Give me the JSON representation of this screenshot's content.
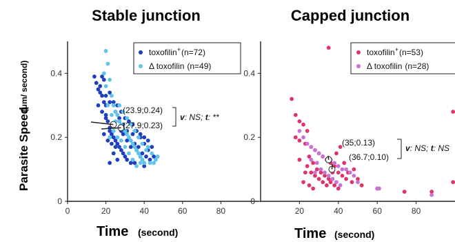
{
  "chart_data": [
    {
      "type": "scatter",
      "title": "Stable junction",
      "xlabel": "Time",
      "xlabel_unit": "(second)",
      "ylabel": "Parasite Speed",
      "ylabel_unit": "(μm/ second)",
      "xlim": [
        0,
        100
      ],
      "ylim": [
        0,
        0.5
      ],
      "xticks": [
        "0",
        "20",
        "40",
        "60",
        "80"
      ],
      "yticks": [
        "0",
        "0.2",
        "0.4"
      ],
      "grid": false,
      "legend_position": "top-right",
      "series": [
        {
          "name": "toxofilin",
          "superscript": "+",
          "count": "(n=72)",
          "color": "#1f3fbf",
          "points": [
            [
              14,
              0.39
            ],
            [
              15,
              0.37
            ],
            [
              16,
              0.35
            ],
            [
              17,
              0.34
            ],
            [
              18,
              0.33
            ],
            [
              19,
              0.31
            ],
            [
              20,
              0.3
            ],
            [
              20,
              0.27
            ],
            [
              21,
              0.25
            ],
            [
              22,
              0.23
            ],
            [
              22,
              0.22
            ],
            [
              23,
              0.21
            ],
            [
              24,
              0.2
            ],
            [
              25,
              0.19
            ],
            [
              26,
              0.18
            ],
            [
              27,
              0.17
            ],
            [
              28,
              0.16
            ],
            [
              29,
              0.15
            ],
            [
              30,
              0.14
            ],
            [
              31,
              0.13
            ],
            [
              33,
              0.12
            ],
            [
              35,
              0.12
            ],
            [
              36,
              0.16
            ],
            [
              38,
              0.2
            ],
            [
              40,
              0.18
            ],
            [
              42,
              0.16
            ],
            [
              18,
              0.39
            ],
            [
              19,
              0.38
            ],
            [
              17,
              0.36
            ],
            [
              22,
              0.34
            ],
            [
              24,
              0.31
            ],
            [
              26,
              0.3
            ],
            [
              28,
              0.28
            ],
            [
              30,
              0.26
            ],
            [
              32,
              0.25
            ],
            [
              34,
              0.24
            ],
            [
              36,
              0.22
            ],
            [
              38,
              0.21
            ],
            [
              40,
              0.2
            ],
            [
              42,
              0.19
            ],
            [
              44,
              0.17
            ],
            [
              18,
              0.28
            ],
            [
              20,
              0.26
            ],
            [
              22,
              0.31
            ],
            [
              25,
              0.28
            ],
            [
              27,
              0.26
            ],
            [
              29,
              0.24
            ],
            [
              31,
              0.22
            ],
            [
              33,
              0.19
            ],
            [
              35,
              0.18
            ],
            [
              37,
              0.17
            ],
            [
              39,
              0.15
            ],
            [
              41,
              0.14
            ],
            [
              43,
              0.13
            ],
            [
              19,
              0.21
            ],
            [
              21,
              0.19
            ],
            [
              23,
              0.18
            ],
            [
              25,
              0.17
            ],
            [
              27,
              0.25
            ],
            [
              29,
              0.21
            ],
            [
              31,
              0.19
            ],
            [
              33,
              0.17
            ],
            [
              22,
              0.12
            ],
            [
              24,
              0.15
            ],
            [
              26,
              0.13
            ],
            [
              28,
              0.22
            ],
            [
              20,
              0.33
            ],
            [
              16,
              0.3
            ],
            [
              34,
              0.21
            ],
            [
              38,
              0.14
            ],
            [
              40,
              0.11
            ],
            [
              45,
              0.14
            ]
          ]
        },
        {
          "name": "Δ toxofilin",
          "count": "(n=49)",
          "color": "#5fc3ec",
          "points": [
            [
              20,
              0.47
            ],
            [
              21,
              0.43
            ],
            [
              19,
              0.4
            ],
            [
              22,
              0.38
            ],
            [
              20,
              0.36
            ],
            [
              23,
              0.33
            ],
            [
              24,
              0.3
            ],
            [
              25,
              0.28
            ],
            [
              26,
              0.27
            ],
            [
              27,
              0.25
            ],
            [
              28,
              0.24
            ],
            [
              29,
              0.23
            ],
            [
              30,
              0.22
            ],
            [
              31,
              0.21
            ],
            [
              32,
              0.2
            ],
            [
              33,
              0.19
            ],
            [
              34,
              0.18
            ],
            [
              35,
              0.17
            ],
            [
              36,
              0.16
            ],
            [
              37,
              0.15
            ],
            [
              38,
              0.14
            ],
            [
              39,
              0.13
            ],
            [
              40,
              0.12
            ],
            [
              42,
              0.17
            ],
            [
              44,
              0.15
            ],
            [
              46,
              0.13
            ],
            [
              47,
              0.14
            ],
            [
              21,
              0.3
            ],
            [
              23,
              0.27
            ],
            [
              25,
              0.25
            ],
            [
              27,
              0.3
            ],
            [
              29,
              0.28
            ],
            [
              31,
              0.26
            ],
            [
              33,
              0.24
            ],
            [
              35,
              0.22
            ],
            [
              37,
              0.2
            ],
            [
              39,
              0.18
            ],
            [
              41,
              0.16
            ],
            [
              43,
              0.12
            ],
            [
              26,
              0.2
            ],
            [
              28,
              0.19
            ],
            [
              30,
              0.17
            ],
            [
              32,
              0.15
            ],
            [
              34,
              0.13
            ],
            [
              24,
              0.22
            ],
            [
              22,
              0.2
            ],
            [
              36,
              0.11
            ],
            [
              38,
              0.12
            ],
            [
              45,
              0.12
            ]
          ]
        }
      ],
      "annotations": [
        {
          "label": "(23.9;0.24)",
          "x": 23.9,
          "y": 0.24
        },
        {
          "label": "(27.9;0.23)",
          "x": 27.9,
          "y": 0.23
        }
      ],
      "stat_text": {
        "v": "v",
        "v_result": ": NS; ",
        "t": "t",
        "t_result": ": **"
      }
    },
    {
      "type": "scatter",
      "title": "Capped junction",
      "xlabel": "Time",
      "xlabel_unit": "(second)",
      "xlim": [
        0,
        100
      ],
      "ylim": [
        0,
        0.5
      ],
      "xticks": [
        "20",
        "40",
        "60",
        "80"
      ],
      "yticks": [
        "0",
        "0.2",
        "0.4"
      ],
      "grid": false,
      "legend_position": "top-right",
      "series": [
        {
          "name": "toxofilin",
          "superscript": "+",
          "count": "(n=53)",
          "color": "#e03368",
          "points": [
            [
              35,
              0.48
            ],
            [
              16,
              0.32
            ],
            [
              99,
              0.28
            ],
            [
              18,
              0.27
            ],
            [
              20,
              0.25
            ],
            [
              22,
              0.24
            ],
            [
              24,
              0.22
            ],
            [
              18,
              0.2
            ],
            [
              20,
              0.19
            ],
            [
              23,
              0.18
            ],
            [
              26,
              0.17
            ],
            [
              28,
              0.16
            ],
            [
              30,
              0.15
            ],
            [
              25,
              0.14
            ],
            [
              32,
              0.14
            ],
            [
              34,
              0.13
            ],
            [
              27,
              0.12
            ],
            [
              36,
              0.12
            ],
            [
              38,
              0.11
            ],
            [
              29,
              0.1
            ],
            [
              31,
              0.09
            ],
            [
              40,
              0.09
            ],
            [
              33,
              0.08
            ],
            [
              42,
              0.08
            ],
            [
              35,
              0.07
            ],
            [
              44,
              0.07
            ],
            [
              24,
              0.11
            ],
            [
              26,
              0.09
            ],
            [
              28,
              0.08
            ],
            [
              30,
              0.07
            ],
            [
              32,
              0.06
            ],
            [
              34,
              0.05
            ],
            [
              36,
              0.06
            ],
            [
              38,
              0.05
            ],
            [
              40,
              0.04
            ],
            [
              22,
              0.06
            ],
            [
              25,
              0.05
            ],
            [
              27,
              0.04
            ],
            [
              45,
              0.09
            ],
            [
              47,
              0.06
            ],
            [
              48,
              0.1
            ],
            [
              50,
              0.07
            ],
            [
              52,
              0.05
            ],
            [
              43,
              0.12
            ],
            [
              39,
              0.15
            ],
            [
              41,
              0.17
            ],
            [
              20,
              0.13
            ],
            [
              23,
              0.09
            ],
            [
              37,
              0.09
            ],
            [
              60,
              0.04
            ],
            [
              74,
              0.03
            ],
            [
              88,
              0.03
            ],
            [
              99,
              0.06
            ]
          ]
        },
        {
          "name": "Δ toxofilin",
          "count": "(n=28)",
          "color": "#c872d4",
          "points": [
            [
              20,
              0.22
            ],
            [
              22,
              0.2
            ],
            [
              24,
              0.18
            ],
            [
              26,
              0.17
            ],
            [
              28,
              0.16
            ],
            [
              30,
              0.15
            ],
            [
              32,
              0.14
            ],
            [
              34,
              0.13
            ],
            [
              36,
              0.13
            ],
            [
              38,
              0.12
            ],
            [
              40,
              0.11
            ],
            [
              42,
              0.1
            ],
            [
              44,
              0.1
            ],
            [
              46,
              0.09
            ],
            [
              48,
              0.08
            ],
            [
              29,
              0.12
            ],
            [
              31,
              0.1
            ],
            [
              33,
              0.09
            ],
            [
              35,
              0.08
            ],
            [
              37,
              0.07
            ],
            [
              39,
              0.06
            ],
            [
              41,
              0.05
            ],
            [
              26,
              0.13
            ],
            [
              28,
              0.09
            ],
            [
              50,
              0.06
            ],
            [
              60,
              0.04
            ],
            [
              61,
              0.04
            ],
            [
              88,
              0.02
            ]
          ]
        }
      ],
      "annotations": [
        {
          "label": "(35;0.13)",
          "x": 35,
          "y": 0.13
        },
        {
          "label": "(36.7;0.10)",
          "x": 36.7,
          "y": 0.1
        }
      ],
      "stat_text": {
        "v": "v",
        "v_result": ": NS; ",
        "t": "t",
        "t_result": ": NS"
      }
    }
  ]
}
